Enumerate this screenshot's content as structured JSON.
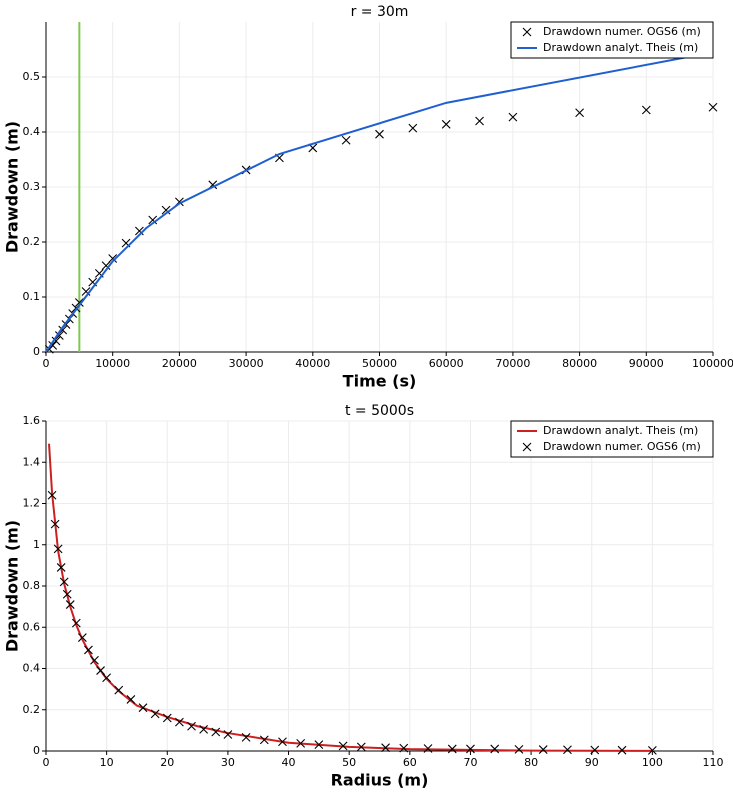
{
  "chart_data": [
    {
      "type": "line",
      "title": "r = 30m",
      "xlabel": "Time (s)",
      "ylabel": "Drawdown (m)",
      "xlim": [
        0,
        100000
      ],
      "xticks": [
        0,
        10000,
        20000,
        30000,
        40000,
        50000,
        60000,
        70000,
        80000,
        90000,
        100000
      ],
      "ylim": [
        0,
        0.6
      ],
      "yticks": [
        0,
        0.1,
        0.2,
        0.3,
        0.4,
        0.5
      ],
      "grid": true,
      "legend": "upper right",
      "vline": 5000,
      "vline_color": "#7ec850",
      "series": [
        {
          "name": "Drawdown numer. OGS6 (m)",
          "color": "#000000",
          "style": "marker",
          "x": [
            500,
            1000,
            1500,
            2000,
            2500,
            3000,
            3500,
            4000,
            4500,
            5000,
            6000,
            7000,
            8000,
            9000,
            10000,
            12000,
            14000,
            16000,
            18000,
            20000,
            25000,
            30000,
            35000,
            40000,
            45000,
            50000,
            55000,
            60000,
            65000,
            70000,
            80000,
            90000,
            100000
          ],
          "values": [
            0.005,
            0.012,
            0.02,
            0.03,
            0.04,
            0.05,
            0.06,
            0.07,
            0.08,
            0.09,
            0.11,
            0.127,
            0.143,
            0.157,
            0.17,
            0.198,
            0.22,
            0.24,
            0.258,
            0.273,
            0.304,
            0.331,
            0.353,
            0.371,
            0.385,
            0.396,
            0.407,
            0.414,
            0.42,
            0.427,
            0.435,
            0.44,
            0.445
          ]
        },
        {
          "name": "Drawdown analyt. Theis (m)",
          "color": "#1f5fcf",
          "style": "line",
          "x": [
            0,
            2500,
            5000,
            10000,
            15000,
            20000,
            35000,
            60000,
            100000
          ],
          "values": [
            0,
            0.045,
            0.085,
            0.165,
            0.225,
            0.27,
            0.36,
            0.453,
            0.545
          ]
        }
      ]
    },
    {
      "type": "line",
      "title": "t = 5000s",
      "xlabel": "Radius (m)",
      "ylabel": "Drawdown (m)",
      "xlim": [
        0,
        110
      ],
      "xticks": [
        0,
        10,
        20,
        30,
        40,
        50,
        60,
        70,
        80,
        90,
        100,
        110
      ],
      "ylim": [
        0,
        1.6
      ],
      "yticks": [
        0,
        0.2,
        0.4,
        0.6,
        0.8,
        1,
        1.2,
        1.4,
        1.6
      ],
      "grid": true,
      "legend": "upper right",
      "series": [
        {
          "name": "Drawdown analyt. Theis (m)",
          "color": "#cc1f1f",
          "style": "line",
          "x": [
            0.5,
            1,
            2,
            3,
            4,
            5,
            6,
            8,
            10,
            12,
            15,
            20,
            25,
            30,
            40,
            50,
            60,
            80,
            100
          ],
          "values": [
            1.49,
            1.25,
            0.97,
            0.81,
            0.7,
            0.61,
            0.54,
            0.43,
            0.35,
            0.29,
            0.22,
            0.165,
            0.12,
            0.087,
            0.04,
            0.02,
            0.009,
            0.002,
            0.0005
          ]
        },
        {
          "name": "Drawdown numer. OGS6 (m)",
          "color": "#000000",
          "style": "marker",
          "x": [
            1,
            1.5,
            2,
            2.5,
            3,
            3.5,
            4,
            5,
            6,
            7,
            8,
            9,
            10,
            12,
            14,
            16,
            18,
            20,
            22,
            24,
            26,
            28,
            30,
            33,
            36,
            39,
            42,
            45,
            49,
            52,
            56,
            59,
            63,
            67,
            70,
            74,
            78,
            82,
            86,
            90.5,
            95,
            100
          ],
          "values": [
            1.24,
            1.1,
            0.98,
            0.89,
            0.82,
            0.76,
            0.71,
            0.62,
            0.55,
            0.49,
            0.44,
            0.39,
            0.355,
            0.295,
            0.25,
            0.21,
            0.18,
            0.16,
            0.14,
            0.12,
            0.105,
            0.092,
            0.08,
            0.066,
            0.054,
            0.045,
            0.037,
            0.031,
            0.025,
            0.02,
            0.016,
            0.014,
            0.012,
            0.01,
            0.01,
            0.01,
            0.008,
            0.007,
            0.006,
            0.005,
            0.004,
            0.003
          ]
        }
      ]
    }
  ]
}
